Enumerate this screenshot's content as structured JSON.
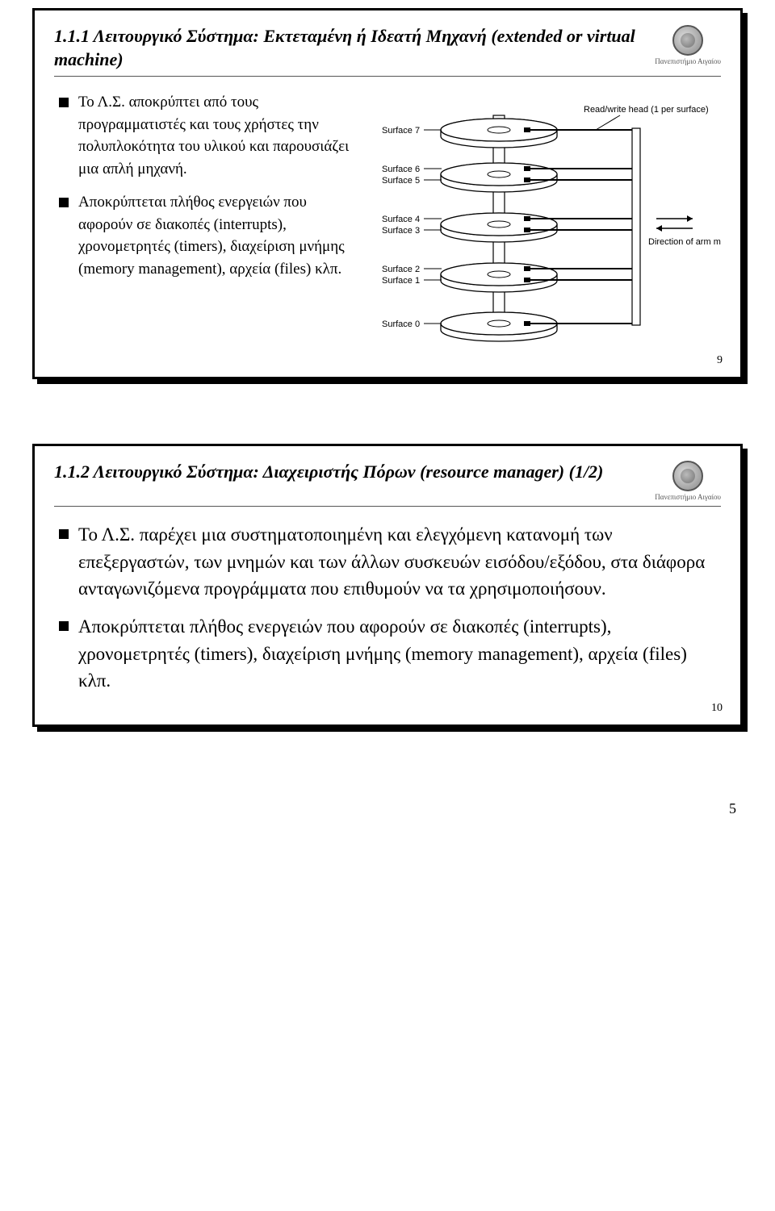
{
  "logo_text": "Πανεπιστήμιο Αιγαίου",
  "slide1": {
    "title": "1.1.1  Λειτουργικό Σύστημα: Εκτεταμένη ή Ιδεατή Μηχανή (extended or virtual machine)",
    "bullet1": "Το Λ.Σ. αποκρύπτει από τους προγραμματιστές και τους χρήστες την πολυπλοκότητα του υλικού και παρουσιάζει μια απλή μηχανή.",
    "bullet2": "Αποκρύπτεται πλήθος ενεργειών που αφορούν σε διακοπές (interrupts), χρονομετρητές (timers), διαχείριση μνήμης (memory management), αρχεία (files) κλπ.",
    "number": "9"
  },
  "slide2": {
    "title": "1.1.2 Λειτουργικό Σύστημα: Διαχειριστής Πόρων (resource manager) (1/2)",
    "bullet1": "Το Λ.Σ. παρέχει μια συστηματοποιημένη και ελεγχόμενη κατανομή των επεξεργαστών, των μνημών και των άλλων συσκευών εισόδου/εξόδου, στα διάφορα ανταγωνιζόμενα προγράμματα που επιθυμούν να τα χρησιμοποιήσουν.",
    "bullet2": "Αποκρύπτεται πλήθος ενεργειών που αφορούν σε διακοπές (interrupts), χρονομετρητές (timers), διαχείριση μνήμης (memory management), αρχεία (files) κλπ.",
    "number": "10"
  },
  "diagram": {
    "head_label": "Read/write head (1 per surface)",
    "arm_label": "Direction of arm motion",
    "surfaces": [
      "Surface 7",
      "Surface 6",
      "Surface 5",
      "Surface 4",
      "Surface 3",
      "Surface 2",
      "Surface 1",
      "Surface 0"
    ],
    "surface_y": [
      48,
      96,
      110,
      158,
      172,
      220,
      234,
      288
    ],
    "platter_y": [
      48,
      103,
      165,
      227,
      288
    ],
    "arm_y": [
      48,
      96,
      110,
      158,
      172,
      220,
      234,
      288
    ],
    "colors": {
      "line": "#000000",
      "fill_light": "#ffffff",
      "fill_dark": "#dddddd"
    }
  },
  "page_number": "5"
}
